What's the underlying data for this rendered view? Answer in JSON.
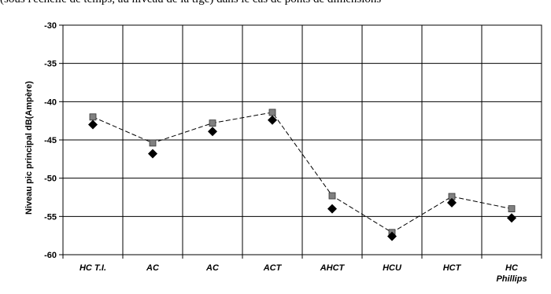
{
  "top_text": "(sous l'échelle de temps, au niveau de la tige) dans le cas de ponts de dimensions",
  "chart_data": {
    "type": "line",
    "title": "",
    "xlabel": "",
    "ylabel": "Niveau pic principal dB(Ampère)",
    "categories": [
      "HC T.I.",
      "AC",
      "AC",
      "ACT",
      "AHCT",
      "HCU",
      "HCT",
      "HC Phillips"
    ],
    "ylim": [
      -60,
      -30
    ],
    "yticks": [
      -30,
      -35,
      -40,
      -45,
      -50,
      -55,
      -60
    ],
    "grid": true,
    "legend": "none",
    "series": [
      {
        "marker": "square",
        "color": "#808080",
        "line": "dashed",
        "values": [
          -42.0,
          -45.4,
          -42.8,
          -41.4,
          -52.3,
          -57.1,
          -52.4,
          -54.0
        ]
      },
      {
        "marker": "diamond",
        "color": "#000000",
        "line": "none",
        "values": [
          -43.0,
          -46.8,
          -43.9,
          -42.4,
          -54.0,
          -57.6,
          -53.2,
          -55.2
        ]
      }
    ]
  }
}
